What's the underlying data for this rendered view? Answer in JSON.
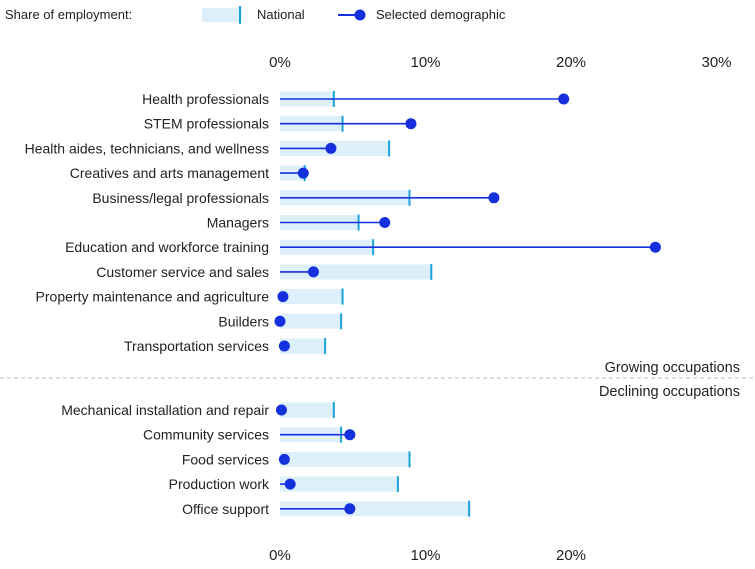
{
  "chart_data": {
    "type": "dot-bar",
    "legend_title": "Share of employment:",
    "legend": [
      {
        "name": "National",
        "color": "#dceffa",
        "marker_color": "#1aa3dc"
      },
      {
        "name": "Selected demographic",
        "color": "#1530dd"
      }
    ],
    "xlim": [
      0,
      30
    ],
    "x_ticks": [
      "0%",
      "10%",
      "20%",
      "30%"
    ],
    "x_ticks_bottom": [
      "0%",
      "10%",
      "20%"
    ],
    "groups": [
      {
        "label": "Growing occupations",
        "rows": [
          {
            "category": "Health professionals",
            "national": 3.7,
            "demographic": 19.5
          },
          {
            "category": "STEM professionals",
            "national": 4.3,
            "demographic": 9.0
          },
          {
            "category": "Health aides, technicians, and wellness",
            "national": 7.5,
            "demographic": 3.5
          },
          {
            "category": "Creatives and arts management",
            "national": 1.7,
            "demographic": 1.6
          },
          {
            "category": "Business/legal professionals",
            "national": 8.9,
            "demographic": 14.7
          },
          {
            "category": "Managers",
            "national": 5.4,
            "demographic": 7.2
          },
          {
            "category": "Education and workforce training",
            "national": 6.4,
            "demographic": 25.8
          },
          {
            "category": "Customer service and sales",
            "national": 10.4,
            "demographic": 2.3
          },
          {
            "category": "Property maintenance and agriculture",
            "national": 4.3,
            "demographic": 0.2
          },
          {
            "category": "Builders",
            "national": 4.2,
            "demographic": 0.0
          },
          {
            "category": "Transportation services",
            "national": 3.1,
            "demographic": 0.3
          }
        ]
      },
      {
        "label": "Declining occupations",
        "rows": [
          {
            "category": "Mechanical installation and repair",
            "national": 3.7,
            "demographic": 0.1
          },
          {
            "category": "Community services",
            "national": 4.2,
            "demographic": 4.8
          },
          {
            "category": "Food services",
            "national": 8.9,
            "demographic": 0.3
          },
          {
            "category": "Production work",
            "national": 8.1,
            "demographic": 0.7
          },
          {
            "category": "Office support",
            "national": 13.0,
            "demographic": 4.8
          }
        ]
      }
    ]
  }
}
